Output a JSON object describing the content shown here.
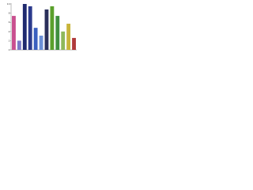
{
  "chart_data": {
    "type": "bar",
    "categories": [
      null,
      null,
      null,
      null,
      null,
      null,
      null,
      null,
      null,
      null,
      null,
      null
    ],
    "values": [
      7.4,
      2,
      10,
      9.5,
      4.8,
      3.1,
      8.8,
      9.5,
      7.4,
      4,
      5.7,
      2.6
    ],
    "colors": [
      "#c94f8f",
      "#7a7ac8",
      "#1f2a6e",
      "#2b3a8c",
      "#3a5fbf",
      "#6b8fd6",
      "#2a2f5a",
      "#5aa02c",
      "#3f8f3f",
      "#8fb85a",
      "#c8b43a",
      "#b03a3a"
    ],
    "ylim": [
      0,
      10
    ],
    "yticks": [
      0,
      2,
      4,
      6,
      8,
      10
    ],
    "grid": false
  }
}
